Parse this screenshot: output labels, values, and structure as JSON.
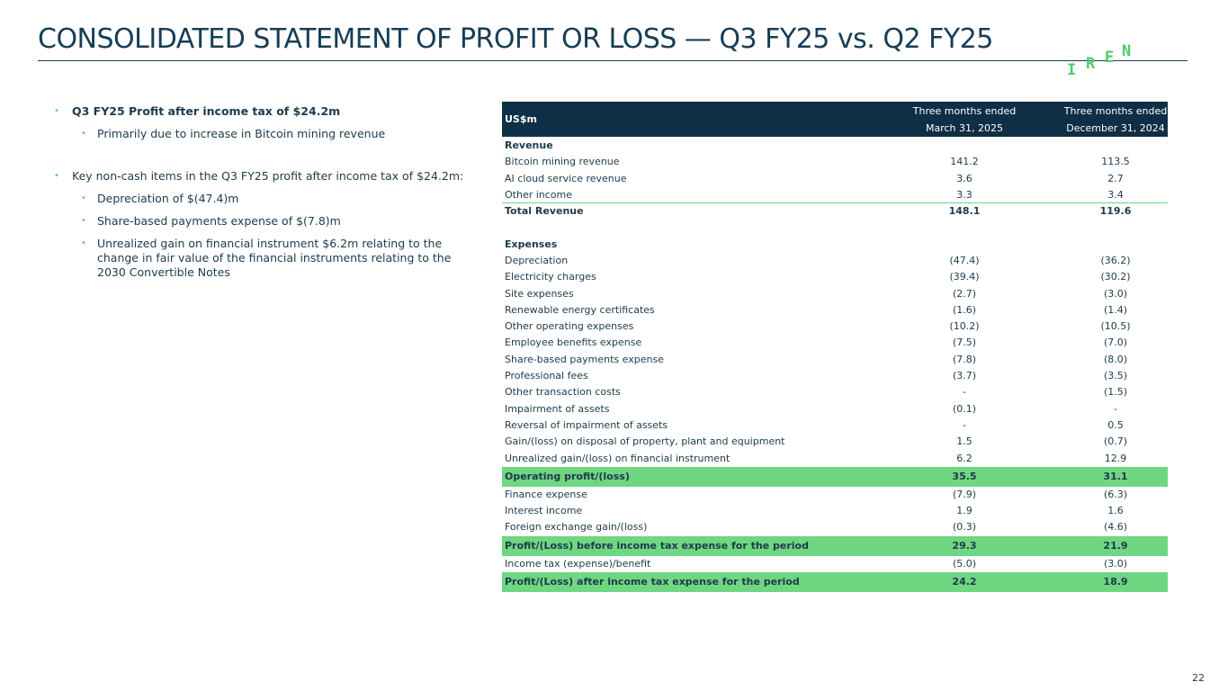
{
  "header": {
    "title": "CONSOLIDATED STATEMENT OF PROFIT OR LOSS — Q3 FY25 vs. Q2 FY25",
    "logo": [
      "I",
      "R",
      "E",
      "N"
    ]
  },
  "bullets": [
    {
      "text": "Q3 FY25 Profit after income tax of $24.2m",
      "bold": true,
      "sub": [
        "Primarily due to increase in Bitcoin mining revenue"
      ]
    },
    {
      "text": "Key non-cash items in the Q3 FY25 profit after income tax of $24.2m:",
      "bold": false,
      "sub": [
        "Depreciation of $(47.4)m",
        "Share-based payments expense of $(7.8)m",
        "Unrealized gain on financial instrument $6.2m relating to the change in fair value of the financial instruments relating to the 2030 Convertible Notes"
      ]
    }
  ],
  "table": {
    "header": {
      "unit": "US$m",
      "columns": [
        [
          "Three months ended",
          "March 31, 2025"
        ],
        [
          "Three months ended",
          "December 31, 2024"
        ]
      ]
    },
    "rows": [
      {
        "label": "Revenue",
        "values": [
          "",
          ""
        ],
        "style": "section"
      },
      {
        "label": "Bitcoin mining revenue",
        "values": [
          "141.2",
          "113.5"
        ],
        "style": "normal"
      },
      {
        "label": "AI cloud service revenue",
        "values": [
          "3.6",
          "2.7"
        ],
        "style": "normal"
      },
      {
        "label": "Other income",
        "values": [
          "3.3",
          "3.4"
        ],
        "style": "normal"
      },
      {
        "label": "Total Revenue",
        "values": [
          "148.1",
          "119.6"
        ],
        "style": "total"
      },
      {
        "label": "Expenses",
        "values": [
          "",
          ""
        ],
        "style": "section"
      },
      {
        "label": "Depreciation",
        "values": [
          "(47.4)",
          "(36.2)"
        ],
        "style": "normal"
      },
      {
        "label": "Electricity charges",
        "values": [
          "(39.4)",
          "(30.2)"
        ],
        "style": "normal"
      },
      {
        "label": "Site expenses",
        "values": [
          "(2.7)",
          "(3.0)"
        ],
        "style": "normal"
      },
      {
        "label": "Renewable energy certificates",
        "values": [
          "(1.6)",
          "(1.4)"
        ],
        "style": "normal"
      },
      {
        "label": "Other operating expenses",
        "values": [
          "(10.2)",
          "(10.5)"
        ],
        "style": "normal"
      },
      {
        "label": "Employee benefits expense",
        "values": [
          "(7.5)",
          "(7.0)"
        ],
        "style": "normal"
      },
      {
        "label": "Share-based payments expense",
        "values": [
          "(7.8)",
          "(8.0)"
        ],
        "style": "normal"
      },
      {
        "label": "Professional fees",
        "values": [
          "(3.7)",
          "(3.5)"
        ],
        "style": "normal"
      },
      {
        "label": "Other transaction costs",
        "values": [
          "-",
          "(1.5)"
        ],
        "style": "normal"
      },
      {
        "label": "Impairment of assets",
        "values": [
          "(0.1)",
          "-"
        ],
        "style": "normal"
      },
      {
        "label": "Reversal of impairment of assets",
        "values": [
          "-",
          "0.5"
        ],
        "style": "normal"
      },
      {
        "label": "Gain/(loss) on disposal of property, plant and equipment",
        "values": [
          "1.5",
          "(0.7)"
        ],
        "style": "normal"
      },
      {
        "label": "Unrealized gain/(loss) on financial instrument",
        "values": [
          "6.2",
          "12.9"
        ],
        "style": "normal"
      },
      {
        "label": "Operating profit/(loss)",
        "values": [
          "35.5",
          "31.1"
        ],
        "style": "highlight"
      },
      {
        "label": "Finance expense",
        "values": [
          "(7.9)",
          "(6.3)"
        ],
        "style": "normal"
      },
      {
        "label": "Interest income",
        "values": [
          "1.9",
          "1.6"
        ],
        "style": "normal"
      },
      {
        "label": "Foreign exchange gain/(loss)",
        "values": [
          "(0.3)",
          "(4.6)"
        ],
        "style": "normal"
      },
      {
        "label": "Profit/(Loss) before income tax expense for the period",
        "values": [
          "29.3",
          "21.9"
        ],
        "style": "highlight"
      },
      {
        "label": "Income tax (expense)/benefit",
        "values": [
          "(5.0)",
          "(3.0)"
        ],
        "style": "normal"
      },
      {
        "label": "Profit/(Loss) after income tax expense for the period",
        "values": [
          "24.2",
          "18.9"
        ],
        "style": "highlight"
      }
    ]
  },
  "footer": {
    "page": "22"
  }
}
